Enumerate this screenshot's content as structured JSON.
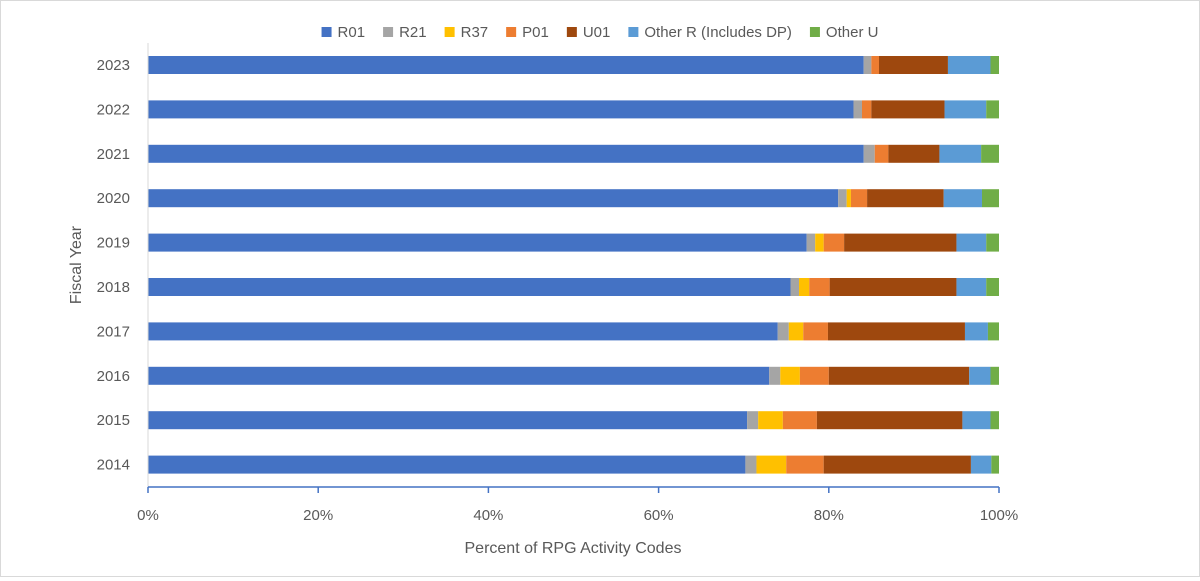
{
  "chart_data": {
    "type": "bar",
    "orientation": "horizontal",
    "stacked": true,
    "normalized": true,
    "title": "",
    "xlabel": "Percent of RPG Activity Codes",
    "ylabel": "Fiscal Year",
    "xlim": [
      0,
      100
    ],
    "x_ticks": [
      "0%",
      "20%",
      "40%",
      "60%",
      "80%",
      "100%"
    ],
    "x_tick_values": [
      0,
      20,
      40,
      60,
      80,
      100
    ],
    "grid": false,
    "legend_position": "top",
    "categories": [
      "2023",
      "2022",
      "2021",
      "2020",
      "2019",
      "2018",
      "2017",
      "2016",
      "2015",
      "2014"
    ],
    "series": [
      {
        "name": "R01",
        "color": "#4472C4",
        "values": [
          84.1,
          82.9,
          84.1,
          81.1,
          77.4,
          75.5,
          74.0,
          73.0,
          70.4,
          70.2
        ]
      },
      {
        "name": "R21",
        "color": "#A5A5A5",
        "values": [
          0.9,
          1.0,
          1.3,
          1.0,
          1.0,
          1.0,
          1.3,
          1.3,
          1.3,
          1.3
        ]
      },
      {
        "name": "R37",
        "color": "#FFC000",
        "values": [
          0.0,
          0.0,
          0.0,
          0.5,
          1.0,
          1.2,
          1.7,
          2.3,
          2.9,
          3.5
        ]
      },
      {
        "name": "P01",
        "color": "#ED7D31",
        "values": [
          0.9,
          1.1,
          1.6,
          1.9,
          2.4,
          2.4,
          2.9,
          3.4,
          4.0,
          4.4
        ]
      },
      {
        "name": "U01",
        "color": "#9E480E",
        "values": [
          8.1,
          8.6,
          6.0,
          9.0,
          13.2,
          14.9,
          16.1,
          16.5,
          17.1,
          17.3
        ]
      },
      {
        "name": "Other R (Includes DP)",
        "color": "#5B9BD5",
        "values": [
          5.0,
          4.9,
          4.9,
          4.5,
          3.5,
          3.5,
          2.7,
          2.5,
          3.3,
          2.4
        ]
      },
      {
        "name": "Other U",
        "color": "#70AD47",
        "values": [
          1.0,
          1.5,
          2.1,
          2.0,
          1.5,
          1.5,
          1.3,
          1.0,
          1.0,
          0.9
        ]
      }
    ]
  }
}
